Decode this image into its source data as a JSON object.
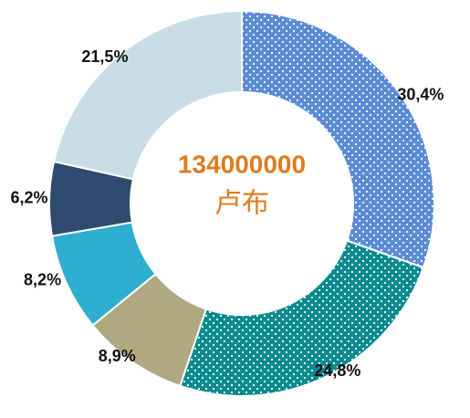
{
  "chart_data": {
    "type": "donut",
    "values": [
      30.4,
      24.8,
      8.9,
      8.2,
      6.2,
      21.5
    ],
    "value_labels": [
      "30,4%",
      "24,8%",
      "8,9%",
      "8,2%",
      "6,2%",
      "21,5%"
    ],
    "colors": [
      "#5b8bd4",
      "#0b8a8f",
      "#b0a880",
      "#2eaed0",
      "#2e4a6e",
      "#c9dde6"
    ],
    "dotted": [
      true,
      true,
      false,
      false,
      false,
      false
    ],
    "center_text": "134000000",
    "center_unit": "卢布"
  }
}
